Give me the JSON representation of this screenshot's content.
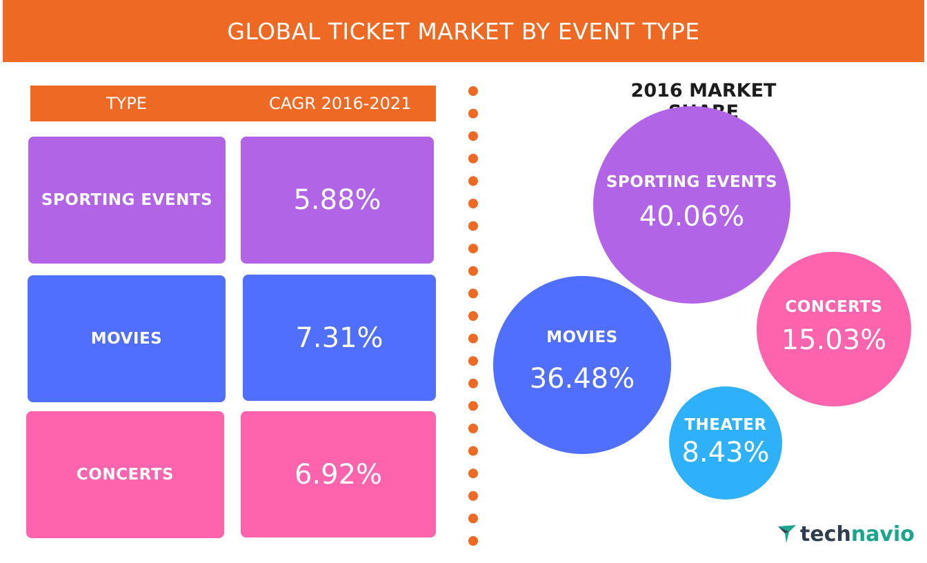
{
  "title": "GLOBAL TICKET MARKET BY EVENT TYPE",
  "table": {
    "header_type": "TYPE",
    "header_cagr": "CAGR 2016-2021"
  },
  "market_share_title": "2016 MARKET SHARE",
  "logo": {
    "part1": "tech",
    "part2": "navio"
  },
  "colors": {
    "orange": "#ee6a24",
    "sporting": "#b264e6",
    "movies": "#4f6ffc",
    "concerts": "#fe63ad",
    "theater": "#2fb1fa"
  },
  "chart_data": [
    {
      "type": "table",
      "title": "",
      "columns": [
        "TYPE",
        "CAGR 2016-2021"
      ],
      "rows": [
        {
          "type": "SPORTING EVENTS",
          "cagr": "5.88%",
          "value": 5.88
        },
        {
          "type": "MOVIES",
          "cagr": "7.31%",
          "value": 7.31
        },
        {
          "type": "CONCERTS",
          "cagr": "6.92%",
          "value": 6.92
        }
      ]
    },
    {
      "type": "pie",
      "title": "2016 MARKET SHARE",
      "categories": [
        "SPORTING EVENTS",
        "MOVIES",
        "CONCERTS",
        "THEATER"
      ],
      "values": [
        40.06,
        36.48,
        15.03,
        8.43
      ],
      "labels": [
        "40.06%",
        "36.48%",
        "15.03%",
        "8.43%"
      ]
    }
  ]
}
